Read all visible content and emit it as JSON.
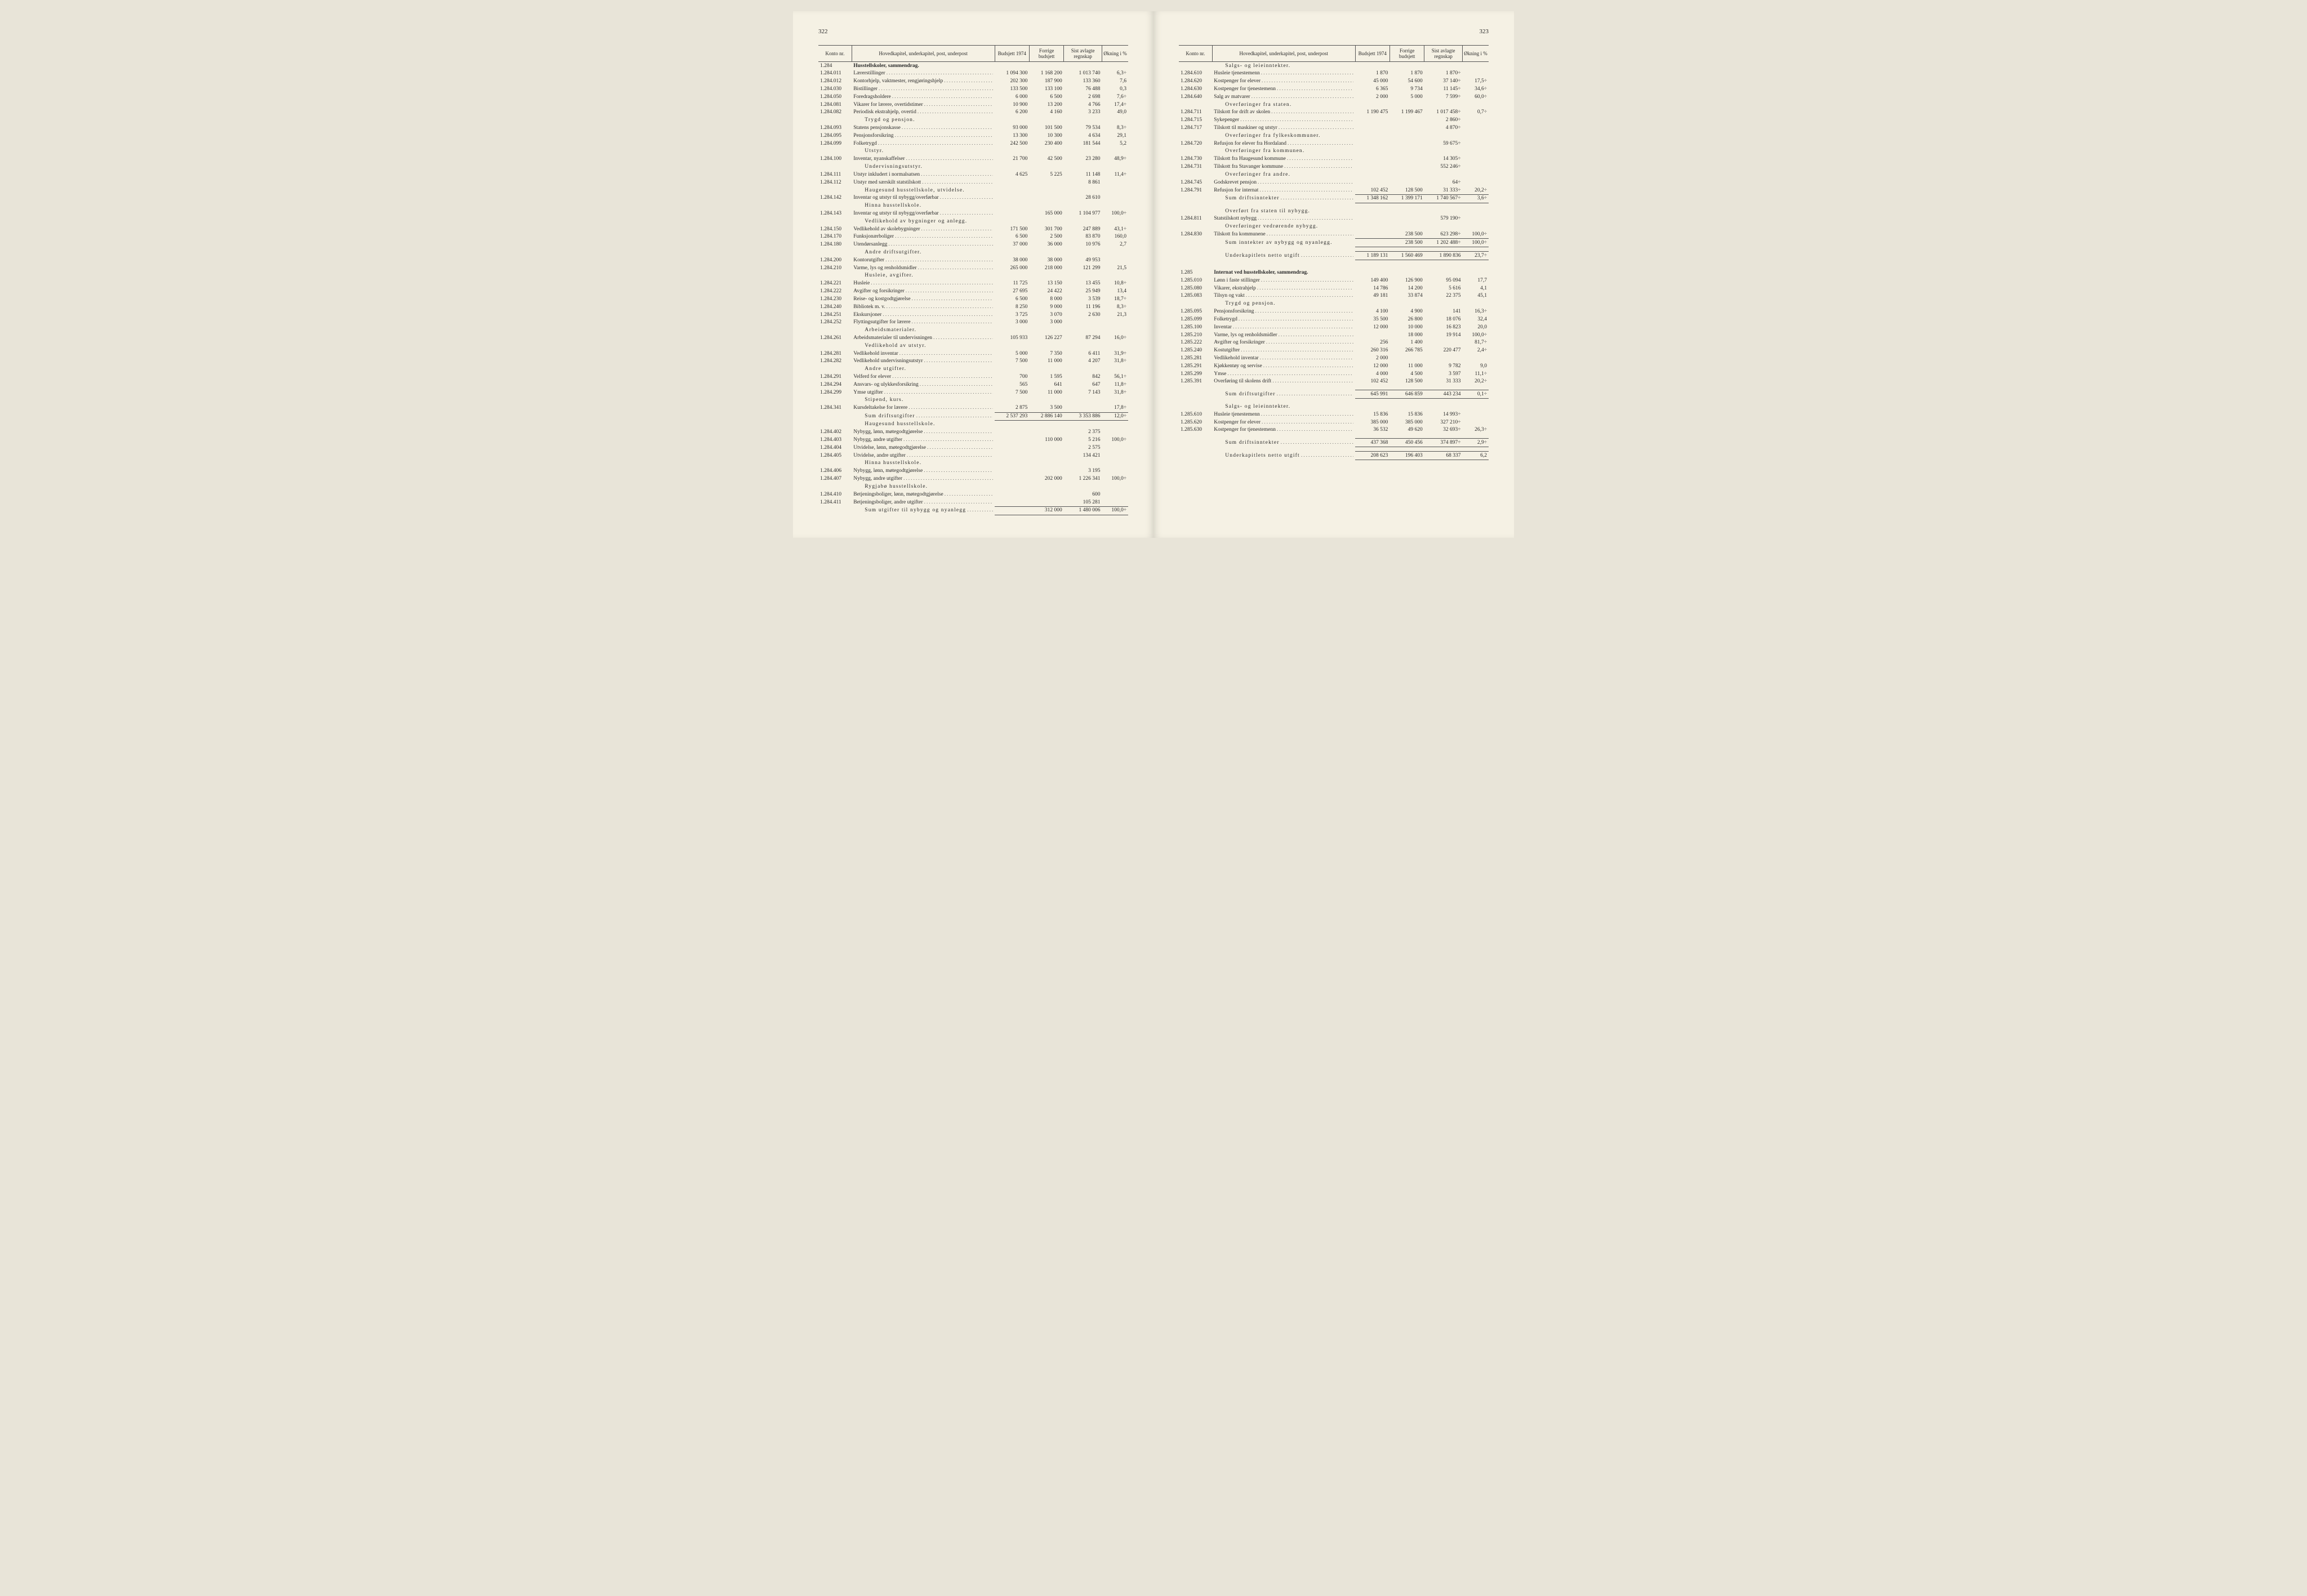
{
  "pages": {
    "left_num": "322",
    "right_num": "323"
  },
  "headers": {
    "konto": "Konto\nnr.",
    "desc": "Hovedkapitel, underkapitel, post, underpost",
    "bud": "Budsjett\n1974",
    "forr": "Forrige\nbudsjett",
    "sist": "Sist avlagte\nregnskap",
    "okn": "Økning\ni %"
  },
  "left_rows": [
    {
      "k": "1.284",
      "d": "Husstellskoler, sammendrag.",
      "bold": true,
      "nodots": true
    },
    {
      "k": "1.284.011",
      "d": "Lærerstillinger",
      "b": "1 094 300",
      "f": "1 168 200",
      "s": "1 013 740",
      "o": "6,3÷"
    },
    {
      "k": "1.284.012",
      "d": "Kontorhjelp, vaktmester, rengjøringshjelp",
      "b": "202 300",
      "f": "187 900",
      "s": "133 360",
      "o": "7,6"
    },
    {
      "k": "1.284.030",
      "d": "Bistillinger",
      "b": "133 500",
      "f": "133 100",
      "s": "76 488",
      "o": "0,3",
      "i": 1
    },
    {
      "k": "1.284.050",
      "d": "Foredragsholdere",
      "b": "6 000",
      "f": "6 500",
      "s": "2 698",
      "o": "7,6÷",
      "i": 1
    },
    {
      "k": "1.284.081",
      "d": "Vikarer for lærere, overtidstimer",
      "b": "10 900",
      "f": "13 200",
      "s": "4 766",
      "o": "17,4÷"
    },
    {
      "k": "1.284.082",
      "d": "Periodisk ekstrahjelp, overtid",
      "b": "6 200",
      "f": "4 160",
      "s": "3 233",
      "o": "49,0"
    },
    {
      "k": "",
      "d": "Trygd og pensjon.",
      "nodots": true,
      "i": 2,
      "ls": true
    },
    {
      "k": "1.284.093",
      "d": "Statens pensjonskasse",
      "b": "93 000",
      "f": "101 500",
      "s": "79 534",
      "o": "8,3÷"
    },
    {
      "k": "1.284.095",
      "d": "Pensjonsforsikring",
      "b": "13 300",
      "f": "10 300",
      "s": "4 634",
      "o": "29,1"
    },
    {
      "k": "1.284.099",
      "d": "Folketrygd",
      "b": "242 500",
      "f": "230 400",
      "s": "181 544",
      "o": "5,2"
    },
    {
      "k": "",
      "d": "Utstyr.",
      "nodots": true,
      "i": 2,
      "ls": true
    },
    {
      "k": "1.284.100",
      "d": "Inventar, nyanskaffelser",
      "b": "21 700",
      "f": "42 500",
      "s": "23 280",
      "o": "48,9÷",
      "i": 1
    },
    {
      "k": "",
      "d": "Undervisningsutstyr.",
      "nodots": true,
      "i": 2,
      "ls": true
    },
    {
      "k": "1.284.111",
      "d": "Utstyr inkludert i normalsatsen",
      "b": "4 625",
      "f": "5 225",
      "s": "11 148",
      "o": "11,4÷"
    },
    {
      "k": "1.284.112",
      "d": "Utstyr med særskilt statstilskott",
      "b": "",
      "f": "",
      "s": "8 861",
      "o": ""
    },
    {
      "k": "",
      "d": "Haugesund husstellskole, utvidelse.",
      "nodots": true,
      "i": 2,
      "ls": true
    },
    {
      "k": "1.284.142",
      "d": "Inventar og utstyr til nybygg/overførbar",
      "b": "",
      "f": "",
      "s": "28 610",
      "o": "",
      "i": 1
    },
    {
      "k": "",
      "d": "Hinna husstellskole.",
      "nodots": true,
      "i": 2,
      "ls": true
    },
    {
      "k": "1.284.143",
      "d": "Inventar og utstyr til nybygg/overførbar",
      "b": "",
      "f": "165 000",
      "s": "1 104 977",
      "o": "100,0÷",
      "i": 1
    },
    {
      "k": "",
      "d": "Vedlikehold av bygninger og anlegg.",
      "nodots": true,
      "i": 2,
      "ls": true
    },
    {
      "k": "1.284.150",
      "d": "Vedlikehold av skolebygninger",
      "b": "171 500",
      "f": "301 700",
      "s": "247 889",
      "o": "43,1÷",
      "i": 1
    },
    {
      "k": "1.284.170",
      "d": "Funksjonærboliger",
      "b": "6 500",
      "f": "2 500",
      "s": "83 870",
      "o": "160,0",
      "i": 1
    },
    {
      "k": "1.284.180",
      "d": "Utendørsanlegg",
      "b": "37 000",
      "f": "36 000",
      "s": "10 976",
      "o": "2,7",
      "i": 1
    },
    {
      "k": "",
      "d": "Andre driftsutgifter.",
      "nodots": true,
      "i": 2,
      "ls": true
    },
    {
      "k": "1.284.200",
      "d": "Kontorutgifter",
      "b": "38 000",
      "f": "38 000",
      "s": "49 953",
      "o": "",
      "i": 1
    },
    {
      "k": "1.284.210",
      "d": "Varme, lys og renholdsmidler",
      "b": "265 000",
      "f": "218 000",
      "s": "121 299",
      "o": "21,5",
      "i": 1
    },
    {
      "k": "",
      "d": "Husleie, avgifter.",
      "nodots": true,
      "i": 2,
      "ls": true
    },
    {
      "k": "1.284.221",
      "d": "Husleie",
      "b": "11 725",
      "f": "13 150",
      "s": "13 455",
      "o": "10,8÷",
      "i": 1
    },
    {
      "k": "1.284.222",
      "d": "Avgifter og forsikringer",
      "b": "27 695",
      "f": "24 422",
      "s": "25 949",
      "o": "13,4",
      "i": 1
    },
    {
      "k": "1.284.230",
      "d": "Reise- og kostgodtgjørelse",
      "b": "6 500",
      "f": "8 000",
      "s": "3 539",
      "o": "18,7÷",
      "i": 1
    },
    {
      "k": "1.284.240",
      "d": "Bibliotek m. v.",
      "b": "8 250",
      "f": "9 000",
      "s": "11 196",
      "o": "8,3÷",
      "i": 1
    },
    {
      "k": "1.284.251",
      "d": "Ekskursjoner",
      "b": "3 725",
      "f": "3 070",
      "s": "2 630",
      "o": "21,3",
      "i": 1
    },
    {
      "k": "1.284.252",
      "d": "Flyttingsutgifter for lærere",
      "b": "3 000",
      "f": "3 000",
      "s": "",
      "o": "",
      "i": 1
    },
    {
      "k": "",
      "d": "Arbeidsmaterialer.",
      "nodots": true,
      "i": 2,
      "ls": true
    },
    {
      "k": "1.284.261",
      "d": "Arbeidsmaterialer til undervisningen",
      "b": "105 933",
      "f": "126 227",
      "s": "87 294",
      "o": "16,0÷"
    },
    {
      "k": "",
      "d": "Vedlikehold av utstyr.",
      "nodots": true,
      "i": 2,
      "ls": true
    },
    {
      "k": "1.284.281",
      "d": "Vedlikehold inventar",
      "b": "5 000",
      "f": "7 350",
      "s": "6 411",
      "o": "31,9÷",
      "i": 1
    },
    {
      "k": "1.284.282",
      "d": "Vedlikehold undervisningsutstyr",
      "b": "7 500",
      "f": "11 000",
      "s": "4 207",
      "o": "31,8÷",
      "i": 1
    },
    {
      "k": "",
      "d": "Andre utgifter.",
      "nodots": true,
      "i": 2,
      "ls": true
    },
    {
      "k": "1.284.291",
      "d": "Velferd for elever",
      "b": "700",
      "f": "1 595",
      "s": "842",
      "o": "56,1÷",
      "i": 1
    },
    {
      "k": "1.284.294",
      "d": "Ansvars- og ulykkesforsikring",
      "b": "565",
      "f": "641",
      "s": "647",
      "o": "11,8÷",
      "i": 1
    },
    {
      "k": "1.284.299",
      "d": "Ymse utgifter",
      "b": "7 500",
      "f": "11 000",
      "s": "7 143",
      "o": "31,8÷",
      "i": 1
    },
    {
      "k": "",
      "d": "Stipend, kurs.",
      "nodots": true,
      "i": 2,
      "ls": true
    },
    {
      "k": "1.284.341",
      "d": "Kursdeltakelse for lærere",
      "b": "2 875",
      "f": "3 500",
      "s": "",
      "o": "17,8÷",
      "i": 1
    },
    {
      "k": "",
      "d": "Sum driftsutgifter",
      "b": "2 537 293",
      "f": "2 886 140",
      "s": "3 353 886",
      "o": "12,0÷",
      "i": 2,
      "sum": true,
      "ls": true
    },
    {
      "k": "",
      "d": "Haugesund husstellskole.",
      "nodots": true,
      "i": 2,
      "ls": true
    },
    {
      "k": "1.284.402",
      "d": "Nybygg, lønn, møtegodtgjørelse",
      "b": "",
      "f": "",
      "s": "2 375",
      "o": "",
      "i": 1
    },
    {
      "k": "1.284.403",
      "d": "Nybygg, andre utgifter",
      "b": "",
      "f": "110 000",
      "s": "5 216",
      "o": "100,0÷",
      "i": 1
    },
    {
      "k": "1.284.404",
      "d": "Utvidelse, lønn, møtegodtgjørelse",
      "b": "",
      "f": "",
      "s": "2 575",
      "o": "",
      "i": 1
    },
    {
      "k": "1.284.405",
      "d": "Utvidelse, andre utgifter",
      "b": "",
      "f": "",
      "s": "134 421",
      "o": "",
      "i": 1
    },
    {
      "k": "",
      "d": "Hinna husstellskole.",
      "nodots": true,
      "i": 2,
      "ls": true
    },
    {
      "k": "1.284.406",
      "d": "Nybygg, lønn, møtegodtgjørelse",
      "b": "",
      "f": "",
      "s": "3 195",
      "o": "",
      "i": 1
    },
    {
      "k": "1.284.407",
      "d": "Nybygg, andre utgifter",
      "b": "",
      "f": "202 000",
      "s": "1 226 341",
      "o": "100,0÷",
      "i": 1
    },
    {
      "k": "",
      "d": "Rygjabø husstellskole.",
      "nodots": true,
      "i": 2,
      "ls": true
    },
    {
      "k": "1.284.410",
      "d": "Betjeningsboliger, lønn, møtegodtgjørelse",
      "b": "",
      "f": "",
      "s": "600",
      "o": "",
      "i": 1
    },
    {
      "k": "1.284.411",
      "d": "Betjeningsboliger, andre utgifter",
      "b": "",
      "f": "",
      "s": "105 281",
      "o": "",
      "i": 1
    },
    {
      "k": "",
      "d": "Sum utgifter til nybygg og nyanlegg",
      "b": "",
      "f": "312 000",
      "s": "1 480 006",
      "o": "100,0÷",
      "i": 2,
      "sum": true,
      "ls": true
    }
  ],
  "right_rows": [
    {
      "k": "",
      "d": "Salgs- og leieinntekter.",
      "nodots": true,
      "i": 2,
      "ls": true
    },
    {
      "k": "1.284.610",
      "d": "Husleie tjenestemenn",
      "b": "1 870",
      "f": "1 870",
      "s": "1 870÷",
      "o": "",
      "i": 1
    },
    {
      "k": "1.284.620",
      "d": "Kostpenger for elever",
      "b": "45 000",
      "f": "54 600",
      "s": "37 140÷",
      "o": "17,5÷",
      "i": 1
    },
    {
      "k": "1.284.630",
      "d": "Kostpenger for tjenestemenn",
      "b": "6 365",
      "f": "9 734",
      "s": "11 145÷",
      "o": "34,6÷",
      "i": 1
    },
    {
      "k": "1.284.640",
      "d": "Salg av matvarer",
      "b": "2 000",
      "f": "5 000",
      "s": "7 599÷",
      "o": "60,0÷",
      "i": 1
    },
    {
      "k": "",
      "d": "Overføringer fra staten.",
      "nodots": true,
      "i": 2,
      "ls": true
    },
    {
      "k": "1.284.711",
      "d": "Tilskott for drift av skolen",
      "b": "1 190 475",
      "f": "1 199 467",
      "s": "1 017 458÷",
      "o": "0,7÷"
    },
    {
      "k": "1.284.715",
      "d": "Sykepenger",
      "b": "",
      "f": "",
      "s": "2 860÷",
      "o": "",
      "i": 1
    },
    {
      "k": "1.284.717",
      "d": "Tilskott til maskiner og utstyr",
      "b": "",
      "f": "",
      "s": "4 870÷",
      "o": ""
    },
    {
      "k": "",
      "d": "Overføringer fra fylkeskommuner.",
      "nodots": true,
      "i": 2,
      "ls": true
    },
    {
      "k": "1.284.720",
      "d": "Refusjon for elever fra Hordaland",
      "b": "",
      "f": "",
      "s": "59 675÷",
      "o": "",
      "i": 1
    },
    {
      "k": "",
      "d": "Overføringer fra kommunen.",
      "nodots": true,
      "i": 2,
      "ls": true
    },
    {
      "k": "1.284.730",
      "d": "Tilskott fra Haugesund kommune",
      "b": "",
      "f": "",
      "s": "14 305÷",
      "o": "",
      "i": 1
    },
    {
      "k": "1.284.731",
      "d": "Tilskott fra Stavanger kommune",
      "b": "",
      "f": "",
      "s": "552 246÷",
      "o": ""
    },
    {
      "k": "",
      "d": "Overføringer fra andre.",
      "nodots": true,
      "i": 2,
      "ls": true
    },
    {
      "k": "1.284.745",
      "d": "Godskrevet pensjon",
      "b": "",
      "f": "",
      "s": "64÷",
      "o": "",
      "i": 1
    },
    {
      "k": "1.284.791",
      "d": "Refusjon for internat",
      "b": "102 452",
      "f": "128 500",
      "s": "31 333÷",
      "o": "20,2÷",
      "i": 1
    },
    {
      "k": "",
      "d": "Sum driftsinntekter",
      "b": "1 348 162",
      "f": "1 399 171",
      "s": "1 740 567÷",
      "o": "3,6÷",
      "i": 2,
      "sum": true,
      "ls": true
    },
    {
      "spacer": true
    },
    {
      "k": "",
      "d": "Overført fra staten til nybygg.",
      "nodots": true,
      "i": 2,
      "ls": true
    },
    {
      "k": "1.284.811",
      "d": "Statstilskott nybygg",
      "b": "",
      "f": "",
      "s": "579 190÷",
      "o": "",
      "i": 1
    },
    {
      "k": "",
      "d": "Overføringer vedrørende nybygg.",
      "nodots": true,
      "i": 2,
      "ls": true
    },
    {
      "k": "1.284.830",
      "d": "Tilskott fra kommunene",
      "b": "",
      "f": "238 500",
      "s": "623 298÷",
      "o": "100,0÷",
      "i": 1
    },
    {
      "k": "",
      "d": "Sum inntekter av nybygg og nyanlegg.",
      "b": "",
      "f": "238 500",
      "s": "1 202 488÷",
      "o": "100,0÷",
      "i": 2,
      "sum": true,
      "nodots": true,
      "ls": true
    },
    {
      "spacer": true
    },
    {
      "k": "",
      "d": "Underkapitlets netto utgift",
      "b": "1 189 131",
      "f": "1 560 469",
      "s": "1 890 836",
      "o": "23,7÷",
      "i": 2,
      "sum": true,
      "ls": true
    },
    {
      "spacer": true
    },
    {
      "spacer": true
    },
    {
      "k": "1.285",
      "d": "Internat ved husstellskoler, sammendrag.",
      "bold": true,
      "nodots": true
    },
    {
      "k": "1.285.010",
      "d": "Lønn i faste stillinger",
      "b": "149 400",
      "f": "126 900",
      "s": "95 094",
      "o": "17,7"
    },
    {
      "k": "1.285.080",
      "d": "Vikarer, ekstrahjelp",
      "b": "14 786",
      "f": "14 200",
      "s": "5 616",
      "o": "4,1"
    },
    {
      "k": "1.285.083",
      "d": "Tilsyn og vakt",
      "b": "49 181",
      "f": "33 874",
      "s": "22 375",
      "o": "45,1"
    },
    {
      "k": "",
      "d": "Trygd og pensjon.",
      "nodots": true,
      "i": 2,
      "ls": true
    },
    {
      "k": "1.285.095",
      "d": "Pensjonsforsikring",
      "b": "4 100",
      "f": "4 900",
      "s": "141",
      "o": "16,3÷",
      "i": 1
    },
    {
      "k": "1.285.099",
      "d": "Folketrygd",
      "b": "35 500",
      "f": "26 800",
      "s": "18 076",
      "o": "32,4",
      "i": 1
    },
    {
      "k": "1.285.100",
      "d": "Inventar",
      "b": "12 000",
      "f": "10 000",
      "s": "16 823",
      "o": "20,0",
      "i": 1
    },
    {
      "k": "1.285.210",
      "d": "Varme, lys og renholdsmidler",
      "b": "",
      "f": "18 000",
      "s": "19 914",
      "o": "100,0÷",
      "i": 1
    },
    {
      "k": "1.285.222",
      "d": "Avgifter og forsikringer",
      "b": "256",
      "f": "1 400",
      "s": "",
      "o": "81,7÷",
      "i": 1
    },
    {
      "k": "1.285.240",
      "d": "Kostutgifter",
      "b": "260 316",
      "f": "266 785",
      "s": "220 477",
      "o": "2,4÷",
      "i": 1
    },
    {
      "k": "1.285.281",
      "d": "Vedlikehold inventar",
      "b": "2 000",
      "f": "",
      "s": "",
      "o": "",
      "i": 1
    },
    {
      "k": "1.285.291",
      "d": "Kjøkkentøy og servise",
      "b": "12 000",
      "f": "11 000",
      "s": "9 782",
      "o": "9,0",
      "i": 1
    },
    {
      "k": "1.285.299",
      "d": "Ymse",
      "b": "4 000",
      "f": "4 500",
      "s": "3 597",
      "o": "11,1÷",
      "i": 1
    },
    {
      "k": "1.285.391",
      "d": "Overføring til skolens drift",
      "b": "102 452",
      "f": "128 500",
      "s": "31 333",
      "o": "20,2÷",
      "i": 1
    },
    {
      "spacer": true
    },
    {
      "k": "",
      "d": "Sum driftsutgifter",
      "b": "645 991",
      "f": "646 859",
      "s": "443 234",
      "o": "0,1÷",
      "i": 2,
      "sum": true,
      "ls": true
    },
    {
      "spacer": true
    },
    {
      "k": "",
      "d": "Salgs- og leieinntekter.",
      "nodots": true,
      "i": 2,
      "ls": true
    },
    {
      "k": "1.285.610",
      "d": "Husleie tjenestemenn",
      "b": "15 836",
      "f": "15 836",
      "s": "14 993÷",
      "o": "",
      "i": 1
    },
    {
      "k": "1.285.620",
      "d": "Kostpenger for elever",
      "b": "385 000",
      "f": "385 000",
      "s": "327 210÷",
      "o": "",
      "i": 1
    },
    {
      "k": "1.285.630",
      "d": "Kostpenger for tjenestemenn",
      "b": "36 532",
      "f": "49 620",
      "s": "32 693÷",
      "o": "26,3÷",
      "i": 1
    },
    {
      "spacer": true
    },
    {
      "k": "",
      "d": "Sum driftsinntekter",
      "b": "437 368",
      "f": "450 456",
      "s": "374 897÷",
      "o": "2,9÷",
      "i": 2,
      "sum": true,
      "ls": true
    },
    {
      "spacer": true
    },
    {
      "k": "",
      "d": "Underkapitlets netto utgift",
      "b": "208 623",
      "f": "196 403",
      "s": "68 337",
      "o": "6,2",
      "i": 2,
      "sum": true,
      "ls": true
    }
  ]
}
